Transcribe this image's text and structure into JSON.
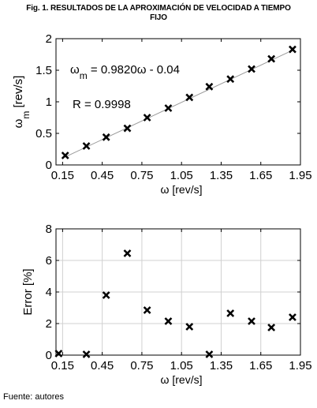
{
  "caption": {
    "line1": "Fig. 1.  RESULTADOS DE LA APROXIMACIÓN DE VELOCIDAD A TIEMPO",
    "line2": "FIJO"
  },
  "footer": "Fuente: autores",
  "chart_data": [
    {
      "type": "scatter",
      "marker": "x",
      "xlabel": "ω  [rev/s]",
      "ylabel": "ω",
      "ylabel_sub": "m",
      "ylabel_unit": "[rev/s]",
      "xlim": [
        0.1,
        1.95
      ],
      "ylim": [
        0,
        2
      ],
      "xticks": [
        "0.15",
        "0.45",
        "0.75",
        "1.05",
        "1.35",
        "1.65",
        "1.95"
      ],
      "yticks": [
        "0",
        "0.5",
        "1",
        "1.5",
        "2"
      ],
      "grid": false,
      "annotations": [
        {
          "text_pre": "ω",
          "text_sub": "m",
          "text_post": " = 0.9820ω  - 0.04"
        },
        {
          "text_pre": "R = 0.9998",
          "text_sub": "",
          "text_post": ""
        }
      ],
      "fit_line": {
        "slope": 0.982,
        "intercept": -0.04,
        "x_range": [
          0.15,
          1.86
        ]
      },
      "series": [
        {
          "x": [
            0.17,
            0.33,
            0.48,
            0.64,
            0.79,
            0.95,
            1.11,
            1.26,
            1.42,
            1.58,
            1.73,
            1.89
          ],
          "y": [
            0.15,
            0.3,
            0.44,
            0.58,
            0.75,
            0.9,
            1.07,
            1.24,
            1.36,
            1.52,
            1.68,
            1.83
          ]
        }
      ]
    },
    {
      "type": "scatter",
      "marker": "x",
      "xlabel": "ω  [rev/s]",
      "ylabel": "Error [%]",
      "xlim": [
        0.1,
        1.95
      ],
      "ylim": [
        0,
        8
      ],
      "xticks": [
        "0.15",
        "0.45",
        "0.75",
        "1.05",
        "1.35",
        "1.65",
        "1.95"
      ],
      "yticks": [
        "0",
        "2",
        "4",
        "6",
        "8"
      ],
      "grid": true,
      "series": [
        {
          "x": [
            0.12,
            0.33,
            0.48,
            0.64,
            0.79,
            0.95,
            1.11,
            1.26,
            1.42,
            1.58,
            1.73,
            1.89
          ],
          "y": [
            0.1,
            0.05,
            3.8,
            6.45,
            2.85,
            2.15,
            1.8,
            0.05,
            2.65,
            2.15,
            1.75,
            2.4
          ]
        }
      ]
    }
  ]
}
